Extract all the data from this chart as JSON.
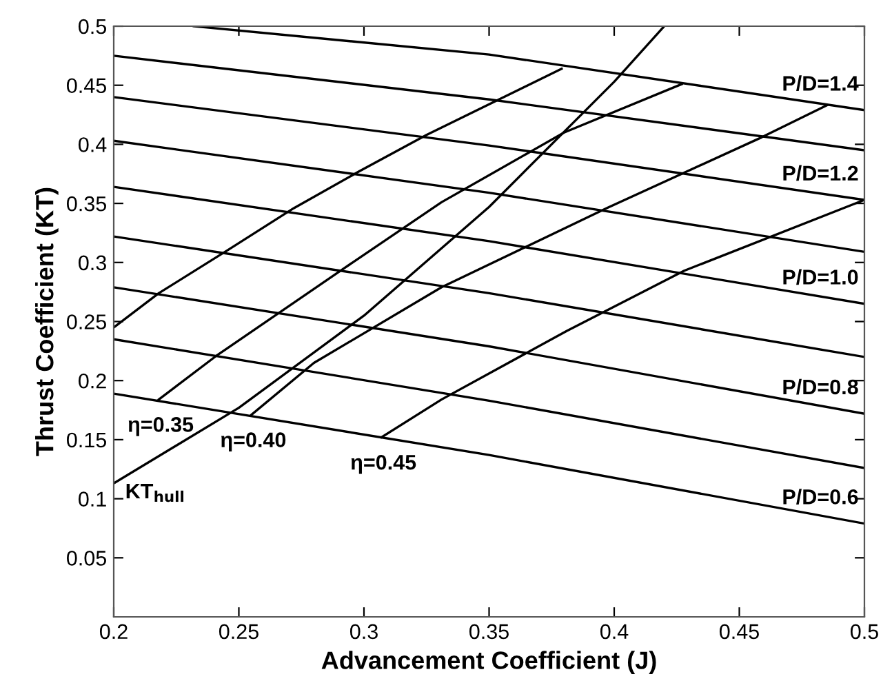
{
  "chart_data": {
    "type": "line",
    "xlabel": "Advancement Coefficient (J)",
    "ylabel": "Thrust Coefficient (KT)",
    "xlim": [
      0.2,
      0.5
    ],
    "ylim": [
      0,
      0.5
    ],
    "xticks": [
      0.2,
      0.25,
      0.3,
      0.35,
      0.4,
      0.45,
      0.5
    ],
    "yticks": [
      0.05,
      0.1,
      0.15,
      0.2,
      0.25,
      0.3,
      0.35,
      0.4,
      0.45,
      0.5
    ],
    "grid": false,
    "legend": "right",
    "marker": "none",
    "line_style": "solid",
    "series": [
      {
        "name": "P/D=1.4",
        "color": "#000000",
        "x": [
          0.232,
          0.35,
          0.5
        ],
        "values": [
          0.5,
          0.476,
          0.429
        ]
      },
      {
        "color": "#000000",
        "x": [
          0.2,
          0.35,
          0.5
        ],
        "values": [
          0.475,
          0.438,
          0.395
        ]
      },
      {
        "name": "P/D=1.2",
        "color": "#000000",
        "x": [
          0.2,
          0.35,
          0.5
        ],
        "values": [
          0.44,
          0.399,
          0.353
        ]
      },
      {
        "color": "#000000",
        "x": [
          0.2,
          0.35,
          0.5
        ],
        "values": [
          0.403,
          0.359,
          0.309
        ]
      },
      {
        "name": "P/D=1.0",
        "color": "#000000",
        "x": [
          0.2,
          0.35,
          0.5
        ],
        "values": [
          0.364,
          0.318,
          0.265
        ]
      },
      {
        "color": "#000000",
        "x": [
          0.2,
          0.35,
          0.5
        ],
        "values": [
          0.322,
          0.274,
          0.22
        ]
      },
      {
        "name": "P/D=0.8",
        "color": "#000000",
        "x": [
          0.2,
          0.35,
          0.5
        ],
        "values": [
          0.279,
          0.229,
          0.172
        ]
      },
      {
        "color": "#000000",
        "x": [
          0.2,
          0.35,
          0.5
        ],
        "values": [
          0.235,
          0.183,
          0.126
        ]
      },
      {
        "name": "P/D=0.6",
        "color": "#000000",
        "x": [
          0.2,
          0.35,
          0.5
        ],
        "values": [
          0.189,
          0.137,
          0.079
        ]
      },
      {
        "color": "#000000",
        "x": [
          0.2,
          0.218,
          0.246,
          0.272,
          0.298,
          0.325,
          0.379
        ],
        "values": [
          0.245,
          0.274,
          0.311,
          0.346,
          0.377,
          0.408,
          0.464
        ]
      },
      {
        "name": "η=0.35",
        "color": "#000000",
        "x": [
          0.218,
          0.241,
          0.292,
          0.331,
          0.38,
          0.427
        ],
        "values": [
          0.184,
          0.221,
          0.295,
          0.351,
          0.41,
          0.451
        ]
      },
      {
        "name": "η=0.40",
        "color": "#000000",
        "x": [
          0.255,
          0.28,
          0.331,
          0.397,
          0.459,
          0.485
        ],
        "values": [
          0.171,
          0.215,
          0.279,
          0.346,
          0.406,
          0.433
        ]
      },
      {
        "name": "η=0.45",
        "color": "#000000",
        "x": [
          0.307,
          0.331,
          0.381,
          0.428,
          0.5
        ],
        "values": [
          0.152,
          0.184,
          0.242,
          0.293,
          0.353
        ]
      },
      {
        "name": "KT$_{hull}$",
        "color": "#000000",
        "x": [
          0.2,
          0.25,
          0.3,
          0.35,
          0.4,
          0.42
        ],
        "values": [
          0.113,
          0.177,
          0.255,
          0.347,
          0.453,
          0.5
        ]
      }
    ]
  }
}
